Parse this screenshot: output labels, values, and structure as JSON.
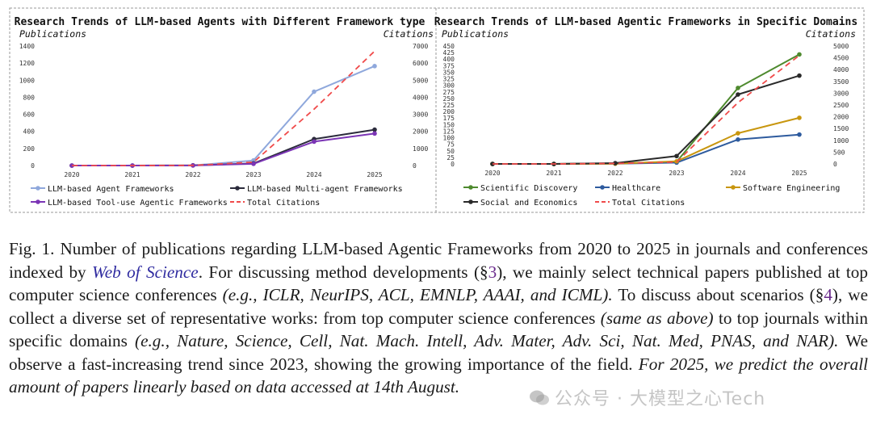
{
  "chart_data": [
    {
      "type": "line",
      "title": "Research Trends of LLM-based Agents with Different Framework type",
      "ylabel": "Publications",
      "y2label": "Citations",
      "categories": [
        "2020",
        "2021",
        "2022",
        "2023",
        "2024",
        "2025"
      ],
      "ylim": [
        0,
        1400
      ],
      "y2lim": [
        0,
        7000
      ],
      "yticks": [
        "0",
        "200",
        "400",
        "600",
        "800",
        "1000",
        "1200",
        "1400"
      ],
      "y2ticks": [
        "0",
        "1000",
        "2000",
        "3000",
        "4000",
        "5000",
        "6000",
        "7000"
      ],
      "series": [
        {
          "name": "LLM-based Agent Frameworks",
          "values": [
            0,
            0,
            2,
            60,
            865,
            1165
          ],
          "color": "#8fa8dc",
          "style": "solid"
        },
        {
          "name": "LLM-based Multi-agent Frameworks",
          "values": [
            0,
            0,
            2,
            25,
            310,
            420
          ],
          "color": "#2b2b3c",
          "style": "solid"
        },
        {
          "name": "LLM-based Tool-use Agentic Frameworks",
          "values": [
            0,
            0,
            1,
            20,
            280,
            375
          ],
          "color": "#7b35b5",
          "style": "solid"
        },
        {
          "name": "Total Citations",
          "axis": "right",
          "values": [
            0,
            0,
            10,
            200,
            3300,
            6700
          ],
          "color": "#f04a4a",
          "style": "dashed"
        }
      ]
    },
    {
      "type": "line",
      "title": "Research Trends of LLM-based Agentic Frameworks in Specific Domains",
      "ylabel": "Publications",
      "y2label": "Citations",
      "categories": [
        "2020",
        "2021",
        "2022",
        "2023",
        "2024",
        "2025"
      ],
      "ylim": [
        0,
        450
      ],
      "y2lim": [
        0,
        5000
      ],
      "yticks": [
        "0",
        "25",
        "50",
        "75",
        "100",
        "125",
        "150",
        "175",
        "200",
        "225",
        "250",
        "275",
        "300",
        "325",
        "350",
        "375",
        "400",
        "425",
        "450"
      ],
      "y2ticks": [
        "0",
        "500",
        "1000",
        "1500",
        "2000",
        "2500",
        "3000",
        "3500",
        "4000",
        "4500",
        "5000"
      ],
      "series": [
        {
          "name": "Scientific Discovery",
          "values": [
            0,
            0,
            2,
            8,
            290,
            418
          ],
          "color": "#4e8a2e",
          "style": "solid"
        },
        {
          "name": "Healthcare",
          "values": [
            0,
            0,
            1,
            5,
            93,
            112
          ],
          "color": "#2e5b9e",
          "style": "solid"
        },
        {
          "name": "Software Engineering",
          "values": [
            0,
            0,
            1,
            10,
            117,
            176
          ],
          "color": "#c8960e",
          "style": "solid"
        },
        {
          "name": "Social and Economics",
          "values": [
            0,
            0,
            3,
            30,
            265,
            337
          ],
          "color": "#2a2a2a",
          "style": "solid"
        },
        {
          "name": "Total Citations",
          "axis": "right",
          "values": [
            0,
            0,
            20,
            80,
            2600,
            4600
          ],
          "color": "#f04a4a",
          "style": "dashed"
        }
      ]
    }
  ],
  "caption": {
    "fig_label": "Fig. 1.",
    "text1": " Number of publications regarding LLM-based Agentic Frameworks from 2020 to 2025 in journals and conferences indexed by ",
    "link": "Web of Science",
    "text2": ". For discussing method developments (§",
    "ref1": "3",
    "text3": "), we mainly select technical papers published at top computer science conferences ",
    "it1": "(e.g., ICLR, NeurIPS, ACL, EMNLP, AAAI, and ICML).",
    "text4": " To discuss about scenarios (§",
    "ref2": "4",
    "text5": "), we collect a diverse set of representative works: from top computer science conferences ",
    "it2": "(same as above)",
    "text6": " to top journals within specific domains ",
    "it3": "(e.g., Nature, Science, Cell, Nat. Mach. Intell, Adv. Mater, Adv. Sci, Nat. Med, PNAS, and NAR).",
    "text7": " We observe a fast-increasing trend since 2023, showing the growing importance of the field. ",
    "it4": "For 2025, we predict the overall amount of papers linearly based on data accessed at 14th August."
  },
  "watermark": "公众号 · 大模型之心Tech"
}
